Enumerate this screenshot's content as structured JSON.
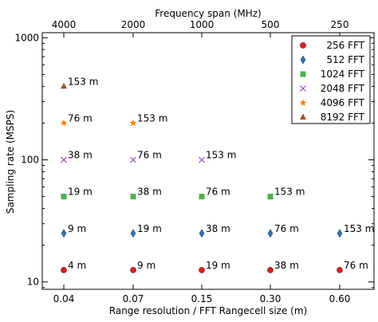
{
  "chart_data": {
    "type": "scatter",
    "xlabel": "Range resolution / FFT Rangecell size (m)",
    "ylabel": "Sampling rate (MSPS)",
    "top_xlabel": "Frequency span (MHz)",
    "x_categories": [
      "0.04",
      "0.07",
      "0.15",
      "0.30",
      "0.60"
    ],
    "top_x_categories": [
      "4000",
      "2000",
      "1000",
      "500",
      "250"
    ],
    "y_scale": "log",
    "ylim": [
      8.7,
      1100
    ],
    "y_ticks": [
      {
        "value": 10,
        "label": "10"
      },
      {
        "value": 100,
        "label": "100"
      },
      {
        "value": 1000,
        "label": "1000"
      }
    ],
    "legend_position": "top-right",
    "grid": false,
    "series": [
      {
        "name": "256 FFT",
        "color": "#e31a1c",
        "marker": "circle",
        "points": [
          {
            "x": "0.04",
            "y": 12.5,
            "label": "4 m"
          },
          {
            "x": "0.07",
            "y": 12.5,
            "label": "9 m"
          },
          {
            "x": "0.15",
            "y": 12.5,
            "label": "19 m"
          },
          {
            "x": "0.30",
            "y": 12.5,
            "label": "38 m"
          },
          {
            "x": "0.60",
            "y": 12.5,
            "label": "76 m"
          }
        ]
      },
      {
        "name": "512 FFT",
        "color": "#2b74b8",
        "marker": "diamond",
        "points": [
          {
            "x": "0.04",
            "y": 25,
            "label": "9 m"
          },
          {
            "x": "0.07",
            "y": 25,
            "label": "19 m"
          },
          {
            "x": "0.15",
            "y": 25,
            "label": "38 m"
          },
          {
            "x": "0.30",
            "y": 25,
            "label": "76 m"
          },
          {
            "x": "0.60",
            "y": 25,
            "label": "153 m"
          }
        ]
      },
      {
        "name": "1024 FFT",
        "color": "#4daf4a",
        "marker": "square",
        "points": [
          {
            "x": "0.04",
            "y": 50,
            "label": "19 m"
          },
          {
            "x": "0.07",
            "y": 50,
            "label": "38 m"
          },
          {
            "x": "0.15",
            "y": 50,
            "label": "76 m"
          },
          {
            "x": "0.30",
            "y": 50,
            "label": "153 m"
          }
        ]
      },
      {
        "name": "2048 FFT",
        "color": "#a24cc2",
        "marker": "x",
        "points": [
          {
            "x": "0.04",
            "y": 100,
            "label": "38 m"
          },
          {
            "x": "0.07",
            "y": 100,
            "label": "76 m"
          },
          {
            "x": "0.15",
            "y": 100,
            "label": "153 m"
          }
        ]
      },
      {
        "name": "4096 FFT",
        "color": "#ff7f00",
        "marker": "star",
        "points": [
          {
            "x": "0.04",
            "y": 200,
            "label": "76 m"
          },
          {
            "x": "0.07",
            "y": 200,
            "label": "153 m"
          }
        ]
      },
      {
        "name": "8192 FFT",
        "color": "#a0522d",
        "marker": "triangle",
        "points": [
          {
            "x": "0.04",
            "y": 400,
            "label": "153 m"
          }
        ]
      }
    ]
  }
}
